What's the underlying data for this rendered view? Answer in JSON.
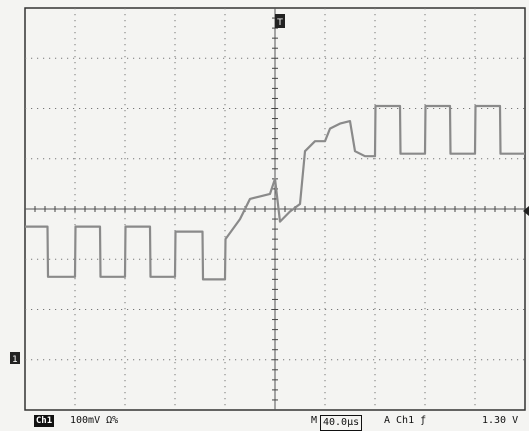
{
  "chart_data": {
    "type": "line",
    "title": "",
    "xlabel": "",
    "ylabel": "",
    "grid": true,
    "xlim": [
      0,
      10
    ],
    "ylim": [
      -4,
      4
    ],
    "series": [
      {
        "name": "",
        "color": "#8a8a8a",
        "x": [
          0,
          0.45,
          0.46,
          1.0,
          1.01,
          1.5,
          1.51,
          2.0,
          2.01,
          2.5,
          2.51,
          3.0,
          3.01,
          3.55,
          3.56,
          4.0,
          4.01,
          4.3,
          4.5,
          4.7,
          4.9,
          5.0,
          5.1,
          5.3,
          5.5,
          5.6,
          5.8,
          6.0,
          6.1,
          6.3,
          6.5,
          6.6,
          6.8,
          7.0,
          7.01,
          7.5,
          7.51,
          8.0,
          8.01,
          8.5,
          8.51,
          9.0,
          9.01,
          9.5,
          9.51,
          10.0
        ],
        "values": [
          -0.35,
          -0.35,
          -1.35,
          -1.35,
          -0.35,
          -0.35,
          -1.35,
          -1.35,
          -0.35,
          -0.35,
          -1.35,
          -1.35,
          -0.45,
          -0.45,
          -1.4,
          -1.4,
          -0.6,
          -0.2,
          0.2,
          0.25,
          0.3,
          0.6,
          -0.25,
          -0.05,
          0.1,
          1.15,
          1.35,
          1.35,
          1.6,
          1.7,
          1.75,
          1.15,
          1.05,
          1.05,
          2.05,
          2.05,
          1.1,
          1.1,
          2.05,
          2.05,
          1.1,
          1.1,
          2.05,
          2.05,
          1.1,
          1.1
        ]
      }
    ]
  },
  "status_bar": {
    "channel": "Ch1",
    "scale": "100mV Ω%",
    "timebase_prefix": "M",
    "timebase": "40.0µs",
    "trigger": "A  Ch1  ƒ",
    "trigger_level": "1.30 V"
  },
  "markers": {
    "trigger_position": "T",
    "ground_level": "1"
  }
}
